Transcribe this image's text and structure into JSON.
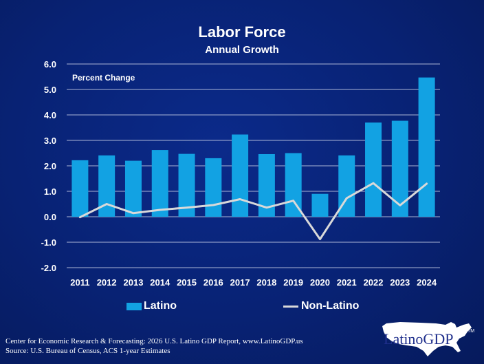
{
  "chart_data": {
    "type": "bar",
    "title": "Labor Force",
    "subtitle": "Annual Growth",
    "ylabel": "Percent Change",
    "xlabel": "",
    "ylim": [
      -2.0,
      6.0
    ],
    "yticks": [
      "6.0",
      "5.0",
      "4.0",
      "3.0",
      "2.0",
      "1.0",
      "0.0",
      "-1.0",
      "-2.0"
    ],
    "ytick_values": [
      6,
      5,
      4,
      3,
      2,
      1,
      0,
      -1,
      -2
    ],
    "grid": true,
    "legend_position": "bottom",
    "categories": [
      "2011",
      "2012",
      "2013",
      "2014",
      "2015",
      "2016",
      "2017",
      "2018",
      "2019",
      "2020",
      "2021",
      "2022",
      "2023",
      "2024"
    ],
    "series": [
      {
        "name": "Latino",
        "type": "bar",
        "color": "#12a2e3",
        "values": [
          2.22,
          2.41,
          2.2,
          2.62,
          2.47,
          2.3,
          3.23,
          2.46,
          2.5,
          0.9,
          2.41,
          3.7,
          3.77,
          5.47
        ]
      },
      {
        "name": "Non-Latino",
        "type": "line",
        "color": "#d9d9d9",
        "values": [
          -0.02,
          0.5,
          0.14,
          0.27,
          0.36,
          0.46,
          0.69,
          0.36,
          0.63,
          -0.88,
          0.73,
          1.32,
          0.45,
          1.3
        ]
      }
    ]
  },
  "legend": {
    "latino_label": "Latino",
    "nonlatino_label": "Non-Latino"
  },
  "source": {
    "line1": "Center for Economic Research & Forecasting: 2026 U.S. Latino GDP Report, www.LatinoGDP.us",
    "line2": "Source: U.S. Bureau of Census, ACS 1-year Estimates"
  },
  "logo": {
    "text": "LatinoGDP",
    "tm": "TM"
  }
}
